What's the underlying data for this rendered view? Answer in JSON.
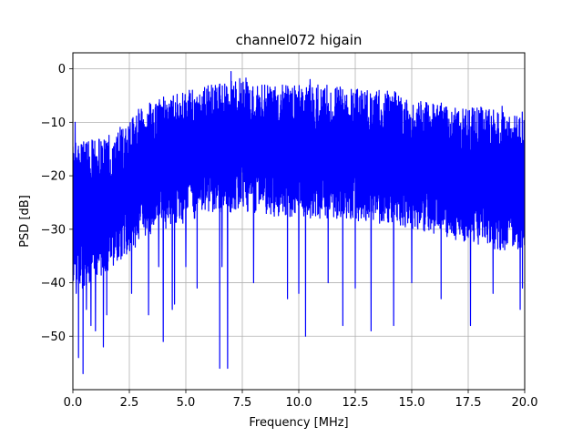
{
  "chart_data": {
    "type": "line",
    "title": "channel072 higain",
    "xlabel": "Frequency [MHz]",
    "ylabel": "PSD [dB]",
    "xlim": [
      0.0,
      20.0
    ],
    "ylim": [
      -60,
      3
    ],
    "xticks": [
      0.0,
      2.5,
      5.0,
      7.5,
      10.0,
      12.5,
      15.0,
      17.5,
      20.0
    ],
    "xtick_labels": [
      "0.0",
      "2.5",
      "5.0",
      "7.5",
      "10.0",
      "12.5",
      "15.0",
      "17.5",
      "20.0"
    ],
    "yticks": [
      0,
      -10,
      -20,
      -30,
      -40,
      -50
    ],
    "ytick_labels": [
      "0",
      "−10",
      "−20",
      "−30",
      "−40",
      "−50"
    ],
    "grid": true,
    "series": [
      {
        "color": "#0000ff",
        "x": [
          0.0,
          1.0,
          2.0,
          2.5,
          3.0,
          4.0,
          5.0,
          6.0,
          7.0,
          7.5,
          8.0,
          9.0,
          10.0,
          11.0,
          12.0,
          13.0,
          14.0,
          15.0,
          16.0,
          17.0,
          18.0,
          19.0,
          20.0
        ],
        "upper": [
          -14,
          -13,
          -11,
          -10,
          -7,
          -5,
          -4,
          -3,
          -2,
          -1,
          -3,
          -3,
          -3,
          -3,
          -3,
          -4,
          -4,
          -5,
          -6,
          -7,
          -7,
          -8,
          -8
        ],
        "lower": [
          -42,
          -40,
          -36,
          -35,
          -32,
          -30,
          -29,
          -27,
          -27,
          -26,
          -28,
          -28,
          -28,
          -28,
          -28,
          -29,
          -29,
          -30,
          -31,
          -32,
          -33,
          -34,
          -34
        ],
        "spikes": [
          [
            0.1,
            -10
          ],
          [
            0.15,
            -42
          ],
          [
            0.25,
            -54
          ],
          [
            0.45,
            -57
          ],
          [
            0.6,
            -45
          ],
          [
            0.8,
            -48
          ],
          [
            1.0,
            -49
          ],
          [
            1.35,
            -52
          ],
          [
            1.5,
            -46
          ],
          [
            2.0,
            -12
          ],
          [
            2.6,
            -42
          ],
          [
            3.05,
            -13
          ],
          [
            3.35,
            -46
          ],
          [
            3.8,
            -37
          ],
          [
            3.9,
            -9
          ],
          [
            4.0,
            -51
          ],
          [
            4.4,
            -45
          ],
          [
            4.5,
            -44
          ],
          [
            5.0,
            -37
          ],
          [
            5.5,
            -41
          ],
          [
            6.5,
            -56
          ],
          [
            6.6,
            -37
          ],
          [
            6.85,
            -56
          ],
          [
            7.0,
            -0.5
          ],
          [
            8.0,
            -40
          ],
          [
            9.5,
            -43
          ],
          [
            10.0,
            -42
          ],
          [
            10.3,
            -50
          ],
          [
            10.5,
            -2
          ],
          [
            11.3,
            -40
          ],
          [
            11.95,
            -48
          ],
          [
            12.5,
            -41
          ],
          [
            13.2,
            -49
          ],
          [
            14.2,
            -48
          ],
          [
            15.0,
            -40
          ],
          [
            16.3,
            -43
          ],
          [
            17.6,
            -48
          ],
          [
            17.8,
            -8
          ],
          [
            18.6,
            -42
          ],
          [
            19.0,
            -7
          ],
          [
            19.8,
            -45
          ],
          [
            19.9,
            -41
          ]
        ]
      }
    ]
  }
}
